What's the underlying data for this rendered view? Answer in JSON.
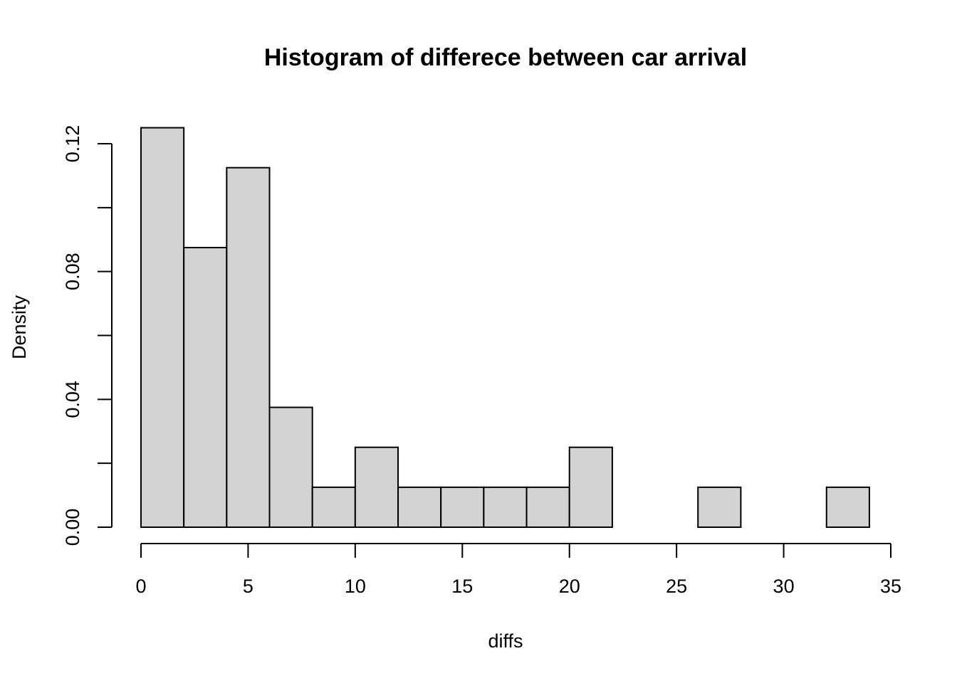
{
  "chart_data": {
    "type": "bar",
    "title": "Histogram of differece between car arrival",
    "xlabel": "diffs",
    "ylabel": "Density",
    "xlim": [
      0,
      35
    ],
    "ylim": [
      0,
      0.12
    ],
    "x_ticks": [
      0,
      5,
      10,
      15,
      20,
      25,
      30,
      35
    ],
    "x_tick_labels": [
      "0",
      "5",
      "10",
      "15",
      "20",
      "25",
      "30",
      "35"
    ],
    "y_ticks": [
      0,
      0.02,
      0.04,
      0.06,
      0.08,
      0.1,
      0.12
    ],
    "y_tick_labels": [
      "0.00",
      "",
      "0.04",
      "",
      "0.08",
      "",
      "0.12"
    ],
    "bin_edges": [
      0,
      2,
      4,
      6,
      8,
      10,
      12,
      14,
      16,
      18,
      20,
      22,
      24,
      26,
      28,
      30,
      32,
      34
    ],
    "values": [
      0.125,
      0.0875,
      0.1125,
      0.0375,
      0.0125,
      0.025,
      0.0125,
      0.0125,
      0.0125,
      0.0125,
      0.025,
      0,
      0,
      0.0125,
      0,
      0,
      0.0125
    ],
    "bar_fill": "#d3d3d3",
    "grid": false
  }
}
